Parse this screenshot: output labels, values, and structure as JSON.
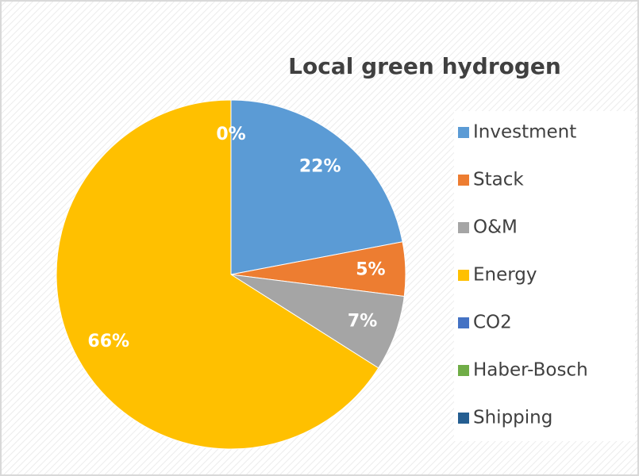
{
  "chart_data": {
    "type": "pie",
    "title": "Local green hydrogen",
    "categories": [
      "Investment",
      "Stack",
      "O&M",
      "Energy",
      "CO2",
      "Haber-Bosch",
      "Shipping"
    ],
    "values": [
      22,
      5,
      7,
      66,
      0,
      0,
      0
    ],
    "value_labels": [
      "22%",
      "5%",
      "7%",
      "66%",
      "0%",
      null,
      null
    ],
    "colors": [
      "#5b9bd5",
      "#ed7d31",
      "#a5a5a5",
      "#ffc000",
      "#4472c4",
      "#70ad47",
      "#255e91"
    ],
    "legend": "right"
  }
}
